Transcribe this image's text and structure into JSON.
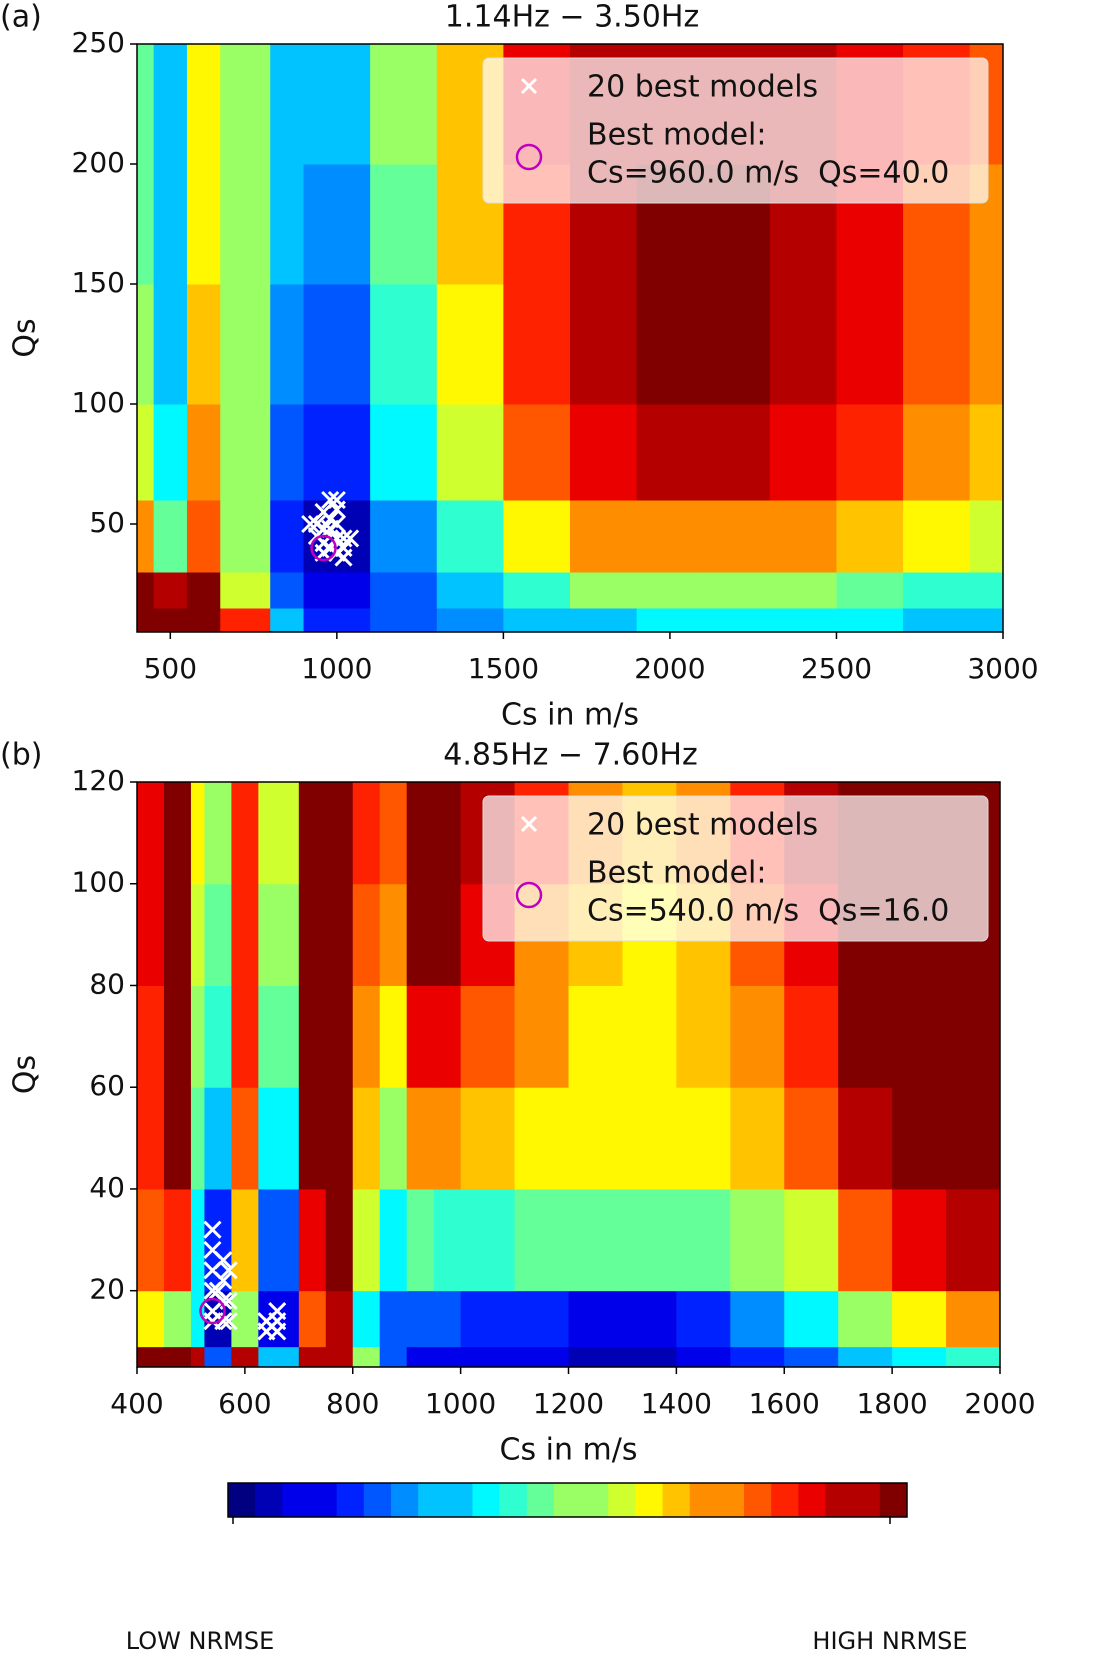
{
  "chart_data": [
    {
      "type": "heatmap",
      "panel_label": "(a)",
      "title": "1.14Hz − 3.50Hz",
      "x_label": "Cs in m/s",
      "y_label": "Qs",
      "xlim": [
        400,
        3000
      ],
      "ylim": [
        5,
        250
      ],
      "xticks": [
        500,
        1000,
        1500,
        2000,
        2500,
        3000
      ],
      "yticks": [
        50,
        100,
        150,
        200,
        250
      ],
      "x_edges": [
        400,
        450,
        550,
        650,
        800,
        900,
        1100,
        1300,
        1500,
        1700,
        1900,
        2100,
        2300,
        2500,
        2700,
        2900,
        3000
      ],
      "y_edges": [
        5,
        15,
        30,
        60,
        100,
        150,
        200,
        250
      ],
      "z": [
        [
          1,
          1,
          1,
          0.8,
          0.3,
          0.15,
          0.2,
          0.25,
          0.3,
          0.33,
          0.35,
          0.35,
          0.35,
          0.35,
          0.33,
          0.33
        ],
        [
          0.95,
          0.9,
          0.95,
          0.55,
          0.2,
          0.1,
          0.2,
          0.3,
          0.4,
          0.5,
          0.5,
          0.5,
          0.5,
          0.45,
          0.4,
          0.4
        ],
        [
          0.7,
          0.45,
          0.75,
          0.5,
          0.15,
          0.05,
          0.25,
          0.4,
          0.6,
          0.7,
          0.72,
          0.72,
          0.7,
          0.65,
          0.6,
          0.55
        ],
        [
          0.55,
          0.35,
          0.7,
          0.5,
          0.2,
          0.15,
          0.35,
          0.55,
          0.75,
          0.85,
          0.9,
          0.9,
          0.85,
          0.8,
          0.72,
          0.68
        ],
        [
          0.5,
          0.3,
          0.65,
          0.5,
          0.25,
          0.2,
          0.4,
          0.6,
          0.8,
          0.9,
          0.95,
          0.95,
          0.9,
          0.85,
          0.78,
          0.72
        ],
        [
          0.45,
          0.3,
          0.6,
          0.5,
          0.3,
          0.25,
          0.45,
          0.65,
          0.8,
          0.92,
          0.95,
          0.95,
          0.92,
          0.85,
          0.78,
          0.72
        ],
        [
          0.45,
          0.3,
          0.6,
          0.5,
          0.3,
          0.3,
          0.5,
          0.68,
          0.85,
          0.9,
          0.92,
          0.92,
          0.9,
          0.85,
          0.8,
          0.75
        ]
      ],
      "series": [
        {
          "name": "20 best models",
          "marker": "x",
          "color": "#ffffff",
          "x": [
            940,
            960,
            980,
            1000,
            960,
            980,
            1000,
            920,
            940,
            960,
            980,
            1000,
            1020,
            1000,
            1020,
            1040,
            980,
            1000,
            1020,
            960
          ],
          "y": [
            50,
            55,
            60,
            60,
            48,
            48,
            50,
            50,
            45,
            42,
            40,
            44,
            44,
            38,
            40,
            44,
            52,
            56,
            36,
            38
          ]
        },
        {
          "name": "Best model:",
          "marker": "o",
          "color": "#bf00bf",
          "x": [
            960
          ],
          "y": [
            40
          ]
        }
      ],
      "best_label": "Cs=960.0 m/s  Qs=40.0"
    },
    {
      "type": "heatmap",
      "panel_label": "(b)",
      "title": "4.85Hz − 7.60Hz",
      "x_label": "Cs in m/s",
      "y_label": "Qs",
      "xlim": [
        400,
        2000
      ],
      "ylim": [
        5,
        120
      ],
      "xticks": [
        400,
        600,
        800,
        1000,
        1200,
        1400,
        1600,
        1800,
        2000
      ],
      "yticks": [
        20,
        40,
        60,
        80,
        100,
        120
      ],
      "x_edges": [
        400,
        450,
        500,
        525,
        575,
        625,
        700,
        750,
        800,
        850,
        900,
        950,
        1000,
        1100,
        1200,
        1300,
        1400,
        1500,
        1600,
        1700,
        1800,
        1900,
        2000
      ],
      "y_edges": [
        5,
        9,
        20,
        40,
        60,
        80,
        100,
        120
      ],
      "z": [
        [
          0.95,
          0.95,
          0.9,
          0.2,
          0.9,
          0.3,
          0.9,
          0.9,
          0.5,
          0.2,
          0.1,
          0.1,
          0.1,
          0.1,
          0.05,
          0.05,
          0.1,
          0.15,
          0.2,
          0.3,
          0.35,
          0.4
        ],
        [
          0.6,
          0.5,
          0.35,
          0.05,
          0.5,
          0.1,
          0.75,
          0.9,
          0.35,
          0.2,
          0.2,
          0.2,
          0.15,
          0.15,
          0.1,
          0.1,
          0.15,
          0.25,
          0.35,
          0.5,
          0.6,
          0.7
        ],
        [
          0.75,
          0.8,
          0.35,
          0.15,
          0.65,
          0.2,
          0.85,
          1,
          0.55,
          0.35,
          0.45,
          0.4,
          0.4,
          0.45,
          0.45,
          0.45,
          0.45,
          0.5,
          0.55,
          0.75,
          0.85,
          0.9
        ],
        [
          0.8,
          0.95,
          0.45,
          0.3,
          0.75,
          0.35,
          0.95,
          1,
          0.65,
          0.5,
          0.7,
          0.7,
          0.65,
          0.6,
          0.6,
          0.6,
          0.6,
          0.65,
          0.75,
          0.9,
          1,
          1
        ],
        [
          0.8,
          1,
          0.5,
          0.4,
          0.8,
          0.45,
          1,
          1,
          0.72,
          0.6,
          0.85,
          0.85,
          0.75,
          0.7,
          0.62,
          0.62,
          0.65,
          0.7,
          0.8,
          0.95,
          1,
          1
        ],
        [
          0.85,
          1,
          0.55,
          0.45,
          0.8,
          0.5,
          1,
          1,
          0.75,
          0.7,
          0.95,
          0.95,
          0.85,
          0.72,
          0.65,
          0.62,
          0.68,
          0.75,
          0.85,
          1,
          1,
          1
        ],
        [
          0.85,
          1,
          0.6,
          0.5,
          0.82,
          0.55,
          1,
          1,
          0.8,
          0.75,
          1,
          1,
          0.9,
          0.8,
          0.7,
          0.65,
          0.7,
          0.8,
          0.9,
          1,
          1,
          1
        ]
      ],
      "series": [
        {
          "name": "20 best models",
          "marker": "x",
          "color": "#ffffff",
          "x": [
            540,
            540,
            540,
            540,
            540,
            540,
            560,
            560,
            560,
            560,
            550,
            570,
            570,
            570,
            640,
            640,
            660,
            660,
            660,
            650
          ],
          "y": [
            32,
            28,
            24,
            20,
            16,
            14,
            26,
            22,
            18,
            14,
            20,
            24,
            18,
            14,
            12,
            14,
            12,
            14,
            16,
            13
          ]
        },
        {
          "name": "Best model:",
          "marker": "o",
          "color": "#bf00bf",
          "x": [
            540
          ],
          "y": [
            16
          ]
        }
      ],
      "best_label": "Cs=540.0 m/s  Qs=16.0"
    }
  ],
  "colorbar": {
    "low_label": "LOW NRMSE",
    "high_label": "HIGH NRMSE"
  }
}
